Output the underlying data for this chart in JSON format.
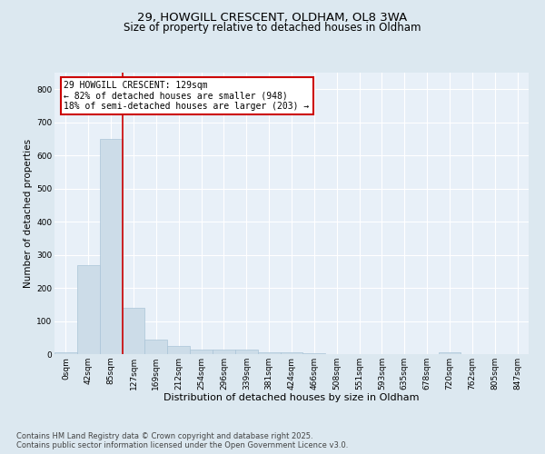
{
  "title1": "29, HOWGILL CRESCENT, OLDHAM, OL8 3WA",
  "title2": "Size of property relative to detached houses in Oldham",
  "xlabel": "Distribution of detached houses by size in Oldham",
  "ylabel": "Number of detached properties",
  "bar_labels": [
    "0sqm",
    "42sqm",
    "85sqm",
    "127sqm",
    "169sqm",
    "212sqm",
    "254sqm",
    "296sqm",
    "339sqm",
    "381sqm",
    "424sqm",
    "466sqm",
    "508sqm",
    "551sqm",
    "593sqm",
    "635sqm",
    "678sqm",
    "720sqm",
    "762sqm",
    "805sqm",
    "847sqm"
  ],
  "bar_values": [
    5,
    270,
    650,
    140,
    45,
    25,
    15,
    13,
    13,
    5,
    5,
    2,
    0,
    0,
    0,
    0,
    0,
    5,
    0,
    0,
    0
  ],
  "bar_color": "#ccdce8",
  "bar_edge_color": "#aac4d8",
  "vline_x": 2.5,
  "vline_color": "#cc0000",
  "annotation_text": "29 HOWGILL CRESCENT: 129sqm\n← 82% of detached houses are smaller (948)\n18% of semi-detached houses are larger (203) →",
  "annotation_box_color": "white",
  "annotation_box_edge_color": "#cc0000",
  "ylim": [
    0,
    850
  ],
  "yticks": [
    0,
    100,
    200,
    300,
    400,
    500,
    600,
    700,
    800
  ],
  "footnote": "Contains HM Land Registry data © Crown copyright and database right 2025.\nContains public sector information licensed under the Open Government Licence v3.0.",
  "bg_color": "#dce8f0",
  "plot_bg_color": "#e8f0f8",
  "title1_fontsize": 9.5,
  "title2_fontsize": 8.5,
  "xlabel_fontsize": 8,
  "ylabel_fontsize": 7.5,
  "footnote_fontsize": 6,
  "tick_fontsize": 6.5,
  "annot_fontsize": 7
}
